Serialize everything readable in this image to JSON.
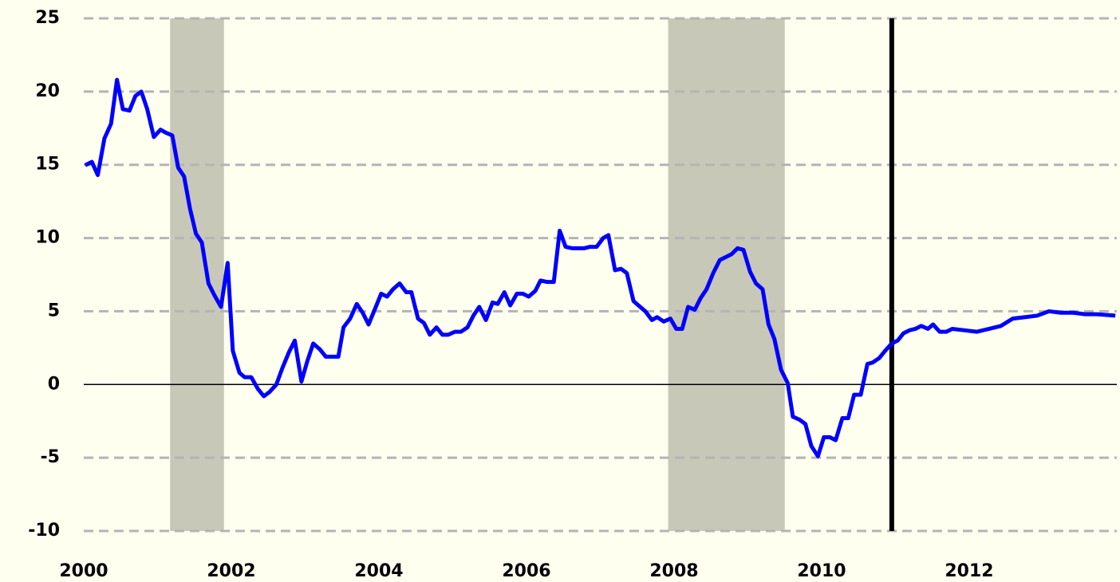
{
  "chart_data": {
    "type": "line",
    "x": [
      2000.02,
      2000.11,
      2000.19,
      2000.28,
      2000.37,
      2000.45,
      2000.53,
      2000.62,
      2000.7,
      2000.78,
      2000.86,
      2000.95,
      2001.04,
      2001.11,
      2001.2,
      2001.28,
      2001.36,
      2001.44,
      2001.52,
      2001.6,
      2001.69,
      2001.77,
      2001.86,
      2001.95,
      2002.02,
      2002.11,
      2002.18,
      2002.27,
      2002.36,
      2002.44,
      2002.52,
      2002.61,
      2002.69,
      2002.78,
      2002.86,
      2002.95,
      2003.03,
      2003.11,
      2003.2,
      2003.28,
      2003.36,
      2003.45,
      2003.52,
      2003.61,
      2003.7,
      2003.78,
      2003.86,
      2003.95,
      2004.03,
      2004.11,
      2004.19,
      2004.28,
      2004.37,
      2004.44,
      2004.53,
      2004.61,
      2004.69,
      2004.78,
      2004.86,
      2004.94,
      2005.03,
      2005.11,
      2005.2,
      2005.28,
      2005.36,
      2005.45,
      2005.54,
      2005.61,
      2005.7,
      2005.78,
      2005.87,
      2005.95,
      2006.03,
      2006.12,
      2006.19,
      2006.28,
      2006.37,
      2006.45,
      2006.53,
      2006.62,
      2006.7,
      2006.78,
      2006.86,
      2006.95,
      2007.04,
      2007.11,
      2007.2,
      2007.28,
      2007.36,
      2007.45,
      2007.54,
      2007.61,
      2007.7,
      2007.77,
      2007.86,
      2007.95,
      2008.03,
      2008.11,
      2008.19,
      2008.28,
      2008.36,
      2008.44,
      2008.53,
      2008.62,
      2008.7,
      2008.78,
      2008.86,
      2008.94,
      2009.03,
      2009.11,
      2009.2,
      2009.28,
      2009.36,
      2009.45,
      2009.54,
      2009.61,
      2009.7,
      2009.78,
      2009.86,
      2009.95,
      2010.03,
      2010.11,
      2010.19,
      2010.28,
      2010.36,
      2010.44,
      2010.53,
      2010.62,
      2010.69,
      2010.78,
      2010.86,
      2010.95,
      2011.03,
      2011.11,
      2011.19,
      2011.27,
      2011.35,
      2011.44,
      2011.51,
      2011.6,
      2011.69,
      2011.77,
      2011.94,
      2012.1,
      2012.27,
      2012.43,
      2012.59,
      2012.76,
      2012.92,
      2013.08,
      2013.24,
      2013.41,
      2013.57,
      2013.73,
      2013.98
    ],
    "values": [
      14.97,
      15.2,
      14.3,
      16.8,
      17.8,
      20.8,
      18.8,
      18.7,
      19.7,
      20.0,
      18.8,
      16.9,
      17.4,
      17.2,
      17.0,
      14.8,
      14.2,
      12.0,
      10.3,
      9.7,
      6.9,
      6.1,
      5.3,
      8.3,
      2.3,
      0.8,
      0.5,
      0.5,
      -0.3,
      -0.8,
      -0.5,
      0.0,
      1.1,
      2.2,
      3.0,
      0.2,
      1.6,
      2.8,
      2.4,
      1.9,
      1.9,
      1.9,
      3.9,
      4.5,
      5.5,
      4.9,
      4.1,
      5.2,
      6.2,
      6.0,
      6.5,
      6.9,
      6.3,
      6.3,
      4.5,
      4.2,
      3.4,
      3.9,
      3.4,
      3.4,
      3.6,
      3.6,
      3.9,
      4.7,
      5.3,
      4.4,
      5.6,
      5.5,
      6.3,
      5.4,
      6.2,
      6.2,
      6.0,
      6.4,
      7.1,
      7.0,
      7.0,
      10.5,
      9.4,
      9.3,
      9.3,
      9.3,
      9.4,
      9.4,
      10.0,
      10.2,
      7.8,
      7.9,
      7.6,
      5.7,
      5.3,
      5.0,
      4.4,
      4.6,
      4.3,
      4.5,
      3.8,
      3.8,
      5.3,
      5.1,
      5.9,
      6.5,
      7.6,
      8.5,
      8.7,
      8.9,
      9.3,
      9.2,
      7.7,
      6.9,
      6.5,
      4.1,
      3.1,
      1.0,
      0.1,
      -2.2,
      -2.4,
      -2.7,
      -4.2,
      -4.9,
      -3.6,
      -3.6,
      -3.8,
      -2.3,
      -2.3,
      -0.7,
      -0.7,
      1.4,
      1.5,
      1.8,
      2.3,
      2.8,
      3.0,
      3.5,
      3.7,
      3.8,
      4.0,
      3.8,
      4.1,
      3.6,
      3.6,
      3.8,
      3.7,
      3.6,
      3.8,
      4.0,
      4.5,
      4.6,
      4.7,
      5.0,
      4.9,
      4.9,
      4.8,
      4.8,
      4.7
    ],
    "color": "#0000ff",
    "xlim": [
      2000,
      2014
    ],
    "xticks": [
      2000,
      2002,
      2004,
      2006,
      2008,
      2010,
      2012
    ],
    "ylim": [
      -10,
      25
    ],
    "yticks": [
      -10,
      -5,
      0,
      5,
      10,
      15,
      20,
      25
    ],
    "grid": true,
    "recessions": [
      [
        2001.17,
        2001.9
      ],
      [
        2007.92,
        2009.5
      ]
    ],
    "recession_color": "#c8c8b8",
    "vline": 2010.95
  }
}
